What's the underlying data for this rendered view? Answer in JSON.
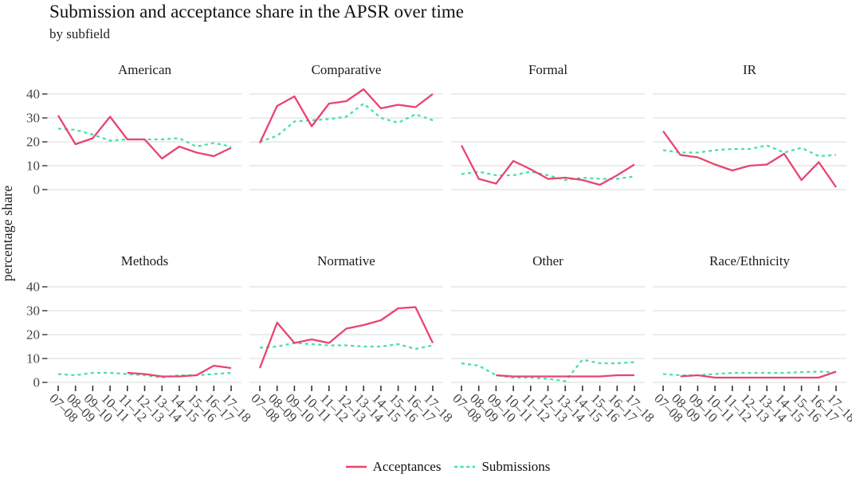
{
  "title": "Submission and acceptance share in the APSR over time",
  "subtitle": "by subfield",
  "y_axis_title": "percentage share",
  "colors": {
    "acceptances": "#e9446f",
    "submissions": "#47e0a7",
    "gridline": "#d9d9d9",
    "tick": "#333333",
    "axis_text": "#454545",
    "text": "#1b1b1b"
  },
  "chart_data": {
    "type": "line",
    "title": "Submission and acceptance share in the APSR over time",
    "subtitle": "by subfield",
    "ylabel": "percentage share",
    "xlabel": "",
    "ylim": [
      0,
      43
    ],
    "y_ticks": [
      0,
      10,
      20,
      30,
      40
    ],
    "grid": "horizontal-only",
    "legend_position": "bottom",
    "x_labels": [
      "07–08",
      "08–09",
      "09–10",
      "10–11",
      "11–12",
      "12–13",
      "13–14",
      "14–15",
      "15–16",
      "16–17",
      "17–18"
    ],
    "series": [
      {
        "key": "acceptances",
        "label": "Acceptances",
        "style": "solid"
      },
      {
        "key": "submissions",
        "label": "Submissions",
        "style": "dashed"
      }
    ],
    "facets": [
      {
        "name": "American",
        "acceptances": [
          31,
          19,
          21.5,
          30.5,
          21,
          21,
          13,
          18,
          15.5,
          14,
          17.5
        ],
        "submissions": [
          25.5,
          25,
          23,
          20.5,
          21,
          21,
          21,
          21.5,
          18,
          19.5,
          18
        ]
      },
      {
        "name": "Comparative",
        "acceptances": [
          19.5,
          35,
          39,
          26.5,
          36,
          37,
          42,
          34,
          35.5,
          34.5,
          40
        ],
        "submissions": [
          20,
          22.5,
          28.5,
          29,
          29.5,
          30.5,
          36,
          30,
          28,
          31.5,
          29
        ]
      },
      {
        "name": "Formal",
        "acceptances": [
          18.5,
          4.5,
          2.5,
          12,
          8.5,
          4.5,
          5,
          4,
          2,
          6,
          10.5
        ],
        "submissions": [
          6.5,
          7.5,
          6,
          6,
          7.5,
          6,
          4,
          5,
          4.5,
          4.5,
          5.5
        ]
      },
      {
        "name": "IR",
        "acceptances": [
          24.5,
          14.5,
          13.5,
          10.5,
          8,
          10,
          10.5,
          15,
          4,
          11.5,
          1
        ],
        "submissions": [
          16.5,
          15.5,
          15.5,
          16.5,
          17,
          17,
          18.5,
          15.5,
          17.5,
          14,
          14.5
        ]
      },
      {
        "name": "Methods",
        "acceptances": [
          null,
          null,
          null,
          null,
          4,
          3.5,
          2.5,
          2.5,
          3,
          7,
          6
        ],
        "submissions": [
          3.5,
          3,
          4,
          4,
          3.5,
          3,
          2,
          3,
          3,
          3.5,
          4
        ]
      },
      {
        "name": "Normative",
        "acceptances": [
          6,
          25,
          16.5,
          18,
          16.5,
          22.5,
          24,
          26,
          31,
          31.5,
          16.5
        ],
        "submissions": [
          14.5,
          15,
          16.5,
          16,
          15.5,
          15.5,
          15,
          15,
          16,
          14,
          15.5
        ]
      },
      {
        "name": "Other",
        "acceptances": [
          null,
          null,
          3,
          2.5,
          2.5,
          2.5,
          2.5,
          2.5,
          2.5,
          3,
          3
        ],
        "submissions": [
          8,
          7,
          3,
          2,
          2,
          1.5,
          0.5,
          9.5,
          8,
          8,
          8.5
        ]
      },
      {
        "name": "Race/Ethnicity",
        "acceptances": [
          null,
          2.5,
          3,
          2,
          2,
          2,
          2,
          2,
          2,
          2,
          4.5
        ],
        "submissions": [
          3.5,
          3,
          3,
          3.5,
          4,
          4,
          4,
          4,
          4.3,
          4.5,
          4.3
        ]
      }
    ]
  }
}
